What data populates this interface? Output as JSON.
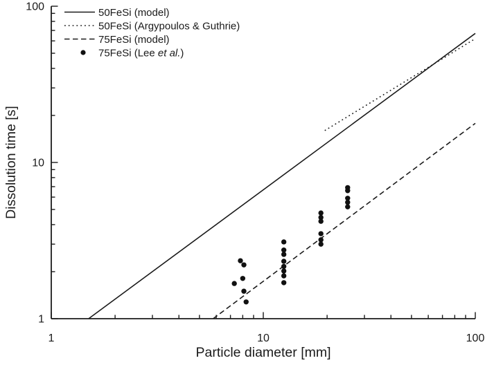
{
  "figure": {
    "background_color": "#ffffff",
    "foreground_color": "#1a1a1a"
  },
  "legend": {
    "items": [
      {
        "marker": "line-solid",
        "label": "50FeSi (model)"
      },
      {
        "marker": "line-dotted",
        "label": "50FeSi (Argypoulos & Guthrie)"
      },
      {
        "marker": "line-dashed",
        "label": "75FeSi (model)"
      },
      {
        "marker": "filled-circle",
        "label_parts": [
          {
            "text": "75FeSi (Lee "
          },
          {
            "text": "et al.",
            "italic": true
          },
          {
            "text": ")"
          }
        ]
      }
    ]
  },
  "chart_data": {
    "type": "line",
    "title": "",
    "xlabel": "Particle diameter [mm]",
    "ylabel": "Dissolution time [s]",
    "x_scale": "log",
    "y_scale": "log",
    "xlim": [
      1,
      100
    ],
    "ylim": [
      1,
      100
    ],
    "x_ticks": [
      1,
      10,
      100
    ],
    "x_tick_labels": [
      "1",
      "10",
      "100"
    ],
    "y_ticks": [
      1,
      10,
      100
    ],
    "y_tick_labels": [
      "1",
      "10",
      "100"
    ],
    "grid": false,
    "legend_position": "top-left",
    "series": [
      {
        "name": "50FeSi (model)",
        "type": "line",
        "style": "solid",
        "x": [
          1.5,
          100
        ],
        "y": [
          1.0,
          67
        ]
      },
      {
        "name": "50FeSi (Argypoulos & Guthrie)",
        "type": "line",
        "style": "dotted",
        "x": [
          19.5,
          100
        ],
        "y": [
          16,
          62
        ]
      },
      {
        "name": "75FeSi (model)",
        "type": "line",
        "style": "dashed",
        "x": [
          5.8,
          100
        ],
        "y": [
          1.0,
          17.8
        ]
      },
      {
        "name": "75FeSi (Lee et al.)",
        "type": "scatter",
        "style": "filled-circle",
        "points": [
          [
            7.8,
            2.35
          ],
          [
            8.1,
            2.21
          ],
          [
            8.0,
            1.81
          ],
          [
            7.3,
            1.68
          ],
          [
            8.1,
            1.5
          ],
          [
            8.3,
            1.28
          ],
          [
            12.5,
            3.1
          ],
          [
            12.5,
            2.75
          ],
          [
            12.5,
            2.58
          ],
          [
            12.5,
            2.33
          ],
          [
            12.5,
            2.16
          ],
          [
            12.5,
            2.02
          ],
          [
            12.5,
            1.88
          ],
          [
            12.5,
            1.7
          ],
          [
            18.7,
            4.75
          ],
          [
            18.7,
            4.45
          ],
          [
            18.7,
            4.2
          ],
          [
            18.7,
            3.5
          ],
          [
            18.7,
            3.2
          ],
          [
            18.7,
            3.0
          ],
          [
            25,
            6.9
          ],
          [
            25,
            6.6
          ],
          [
            25,
            5.9
          ],
          [
            25,
            5.55
          ],
          [
            25,
            5.2
          ]
        ]
      }
    ]
  }
}
